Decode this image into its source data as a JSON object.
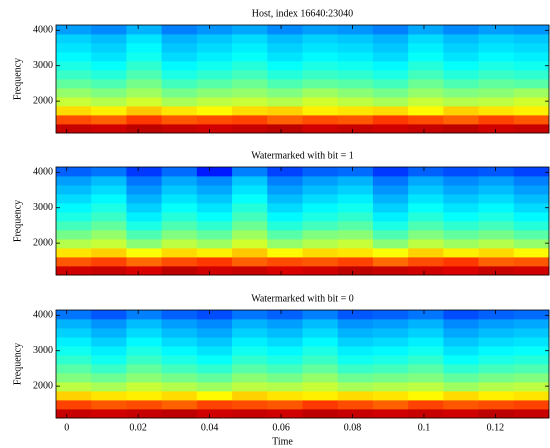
{
  "chart_data": [
    {
      "type": "heatmap",
      "title": "Host, index 16640:23040",
      "ylabel": "Frequency",
      "colormap": "jet",
      "xlim": [
        -0.003,
        0.135
      ],
      "ylim": [
        1100,
        4150
      ],
      "xticks": [
        0,
        0.02,
        0.04,
        0.06,
        0.08,
        0.1,
        0.12
      ],
      "yticks": [
        2000,
        3000,
        4000
      ],
      "z": [
        [
          0.93,
          0.92,
          0.94,
          0.93,
          0.92,
          0.93,
          0.94,
          0.92,
          0.93,
          0.92,
          0.93,
          0.94,
          0.92,
          0.93
        ],
        [
          0.8,
          0.78,
          0.82,
          0.79,
          0.8,
          0.81,
          0.78,
          0.8,
          0.79,
          0.82,
          0.8,
          0.78,
          0.81,
          0.79
        ],
        [
          0.66,
          0.64,
          0.68,
          0.65,
          0.63,
          0.66,
          0.67,
          0.64,
          0.65,
          0.66,
          0.63,
          0.67,
          0.65,
          0.64
        ],
        [
          0.57,
          0.55,
          0.58,
          0.54,
          0.56,
          0.57,
          0.55,
          0.58,
          0.56,
          0.54,
          0.57,
          0.55,
          0.56,
          0.58
        ],
        [
          0.52,
          0.5,
          0.53,
          0.49,
          0.51,
          0.52,
          0.5,
          0.53,
          0.51,
          0.49,
          0.52,
          0.5,
          0.51,
          0.53
        ],
        [
          0.47,
          0.45,
          0.49,
          0.44,
          0.46,
          0.48,
          0.45,
          0.47,
          0.46,
          0.44,
          0.48,
          0.45,
          0.47,
          0.46
        ],
        [
          0.43,
          0.41,
          0.45,
          0.4,
          0.42,
          0.44,
          0.41,
          0.43,
          0.42,
          0.4,
          0.44,
          0.41,
          0.43,
          0.42
        ],
        [
          0.4,
          0.38,
          0.42,
          0.37,
          0.39,
          0.41,
          0.38,
          0.4,
          0.39,
          0.37,
          0.41,
          0.38,
          0.4,
          0.39
        ],
        [
          0.37,
          0.35,
          0.39,
          0.34,
          0.36,
          0.38,
          0.35,
          0.37,
          0.36,
          0.34,
          0.38,
          0.35,
          0.37,
          0.36
        ],
        [
          0.35,
          0.33,
          0.37,
          0.32,
          0.34,
          0.36,
          0.33,
          0.35,
          0.34,
          0.32,
          0.36,
          0.33,
          0.35,
          0.34
        ],
        [
          0.33,
          0.31,
          0.35,
          0.3,
          0.32,
          0.34,
          0.31,
          0.33,
          0.32,
          0.3,
          0.34,
          0.31,
          0.33,
          0.32
        ],
        [
          0.28,
          0.26,
          0.3,
          0.25,
          0.27,
          0.29,
          0.26,
          0.28,
          0.27,
          0.25,
          0.29,
          0.26,
          0.28,
          0.27
        ]
      ]
    },
    {
      "type": "heatmap",
      "title": "Watermarked with bit = 1",
      "ylabel": "Frequency",
      "colormap": "jet",
      "xlim": [
        -0.003,
        0.135
      ],
      "ylim": [
        1100,
        4150
      ],
      "xticks": [
        0,
        0.02,
        0.04,
        0.06,
        0.08,
        0.1,
        0.12
      ],
      "yticks": [
        2000,
        3000,
        4000
      ],
      "z": [
        [
          0.92,
          0.93,
          0.91,
          0.94,
          0.92,
          0.93,
          0.91,
          0.92,
          0.94,
          0.93,
          0.92,
          0.91,
          0.93,
          0.92
        ],
        [
          0.79,
          0.81,
          0.77,
          0.8,
          0.82,
          0.78,
          0.8,
          0.79,
          0.81,
          0.77,
          0.8,
          0.82,
          0.78,
          0.79
        ],
        [
          0.65,
          0.67,
          0.62,
          0.66,
          0.64,
          0.68,
          0.63,
          0.66,
          0.65,
          0.62,
          0.67,
          0.64,
          0.66,
          0.63
        ],
        [
          0.55,
          0.57,
          0.51,
          0.56,
          0.53,
          0.58,
          0.52,
          0.55,
          0.57,
          0.51,
          0.56,
          0.53,
          0.55,
          0.52
        ],
        [
          0.49,
          0.52,
          0.45,
          0.5,
          0.47,
          0.53,
          0.46,
          0.5,
          0.51,
          0.45,
          0.5,
          0.47,
          0.49,
          0.46
        ],
        [
          0.44,
          0.47,
          0.4,
          0.45,
          0.42,
          0.48,
          0.41,
          0.44,
          0.46,
          0.4,
          0.45,
          0.42,
          0.44,
          0.41
        ],
        [
          0.4,
          0.43,
          0.36,
          0.41,
          0.38,
          0.44,
          0.37,
          0.4,
          0.42,
          0.36,
          0.41,
          0.38,
          0.4,
          0.37
        ],
        [
          0.37,
          0.4,
          0.33,
          0.38,
          0.35,
          0.41,
          0.34,
          0.37,
          0.39,
          0.33,
          0.38,
          0.35,
          0.37,
          0.34
        ],
        [
          0.34,
          0.37,
          0.3,
          0.35,
          0.32,
          0.38,
          0.31,
          0.34,
          0.36,
          0.3,
          0.35,
          0.32,
          0.34,
          0.31
        ],
        [
          0.31,
          0.34,
          0.27,
          0.32,
          0.29,
          0.35,
          0.28,
          0.31,
          0.33,
          0.27,
          0.32,
          0.29,
          0.31,
          0.28
        ],
        [
          0.28,
          0.31,
          0.24,
          0.29,
          0.26,
          0.32,
          0.25,
          0.28,
          0.3,
          0.24,
          0.29,
          0.26,
          0.28,
          0.25
        ],
        [
          0.22,
          0.24,
          0.18,
          0.23,
          0.15,
          0.25,
          0.19,
          0.22,
          0.23,
          0.18,
          0.22,
          0.2,
          0.21,
          0.19
        ]
      ]
    },
    {
      "type": "heatmap",
      "title": "Watermarked with bit = 0",
      "ylabel": "Frequency",
      "xlabel": "Time",
      "colormap": "jet",
      "xlim": [
        -0.003,
        0.135
      ],
      "ylim": [
        1100,
        4150
      ],
      "xticks": [
        0,
        0.02,
        0.04,
        0.06,
        0.08,
        0.1,
        0.12
      ],
      "yticks": [
        2000,
        3000,
        4000
      ],
      "z": [
        [
          0.93,
          0.92,
          0.93,
          0.94,
          0.92,
          0.93,
          0.92,
          0.94,
          0.93,
          0.92,
          0.93,
          0.92,
          0.94,
          0.93
        ],
        [
          0.81,
          0.79,
          0.8,
          0.78,
          0.81,
          0.8,
          0.79,
          0.82,
          0.8,
          0.78,
          0.81,
          0.79,
          0.8,
          0.81
        ],
        [
          0.67,
          0.65,
          0.64,
          0.66,
          0.63,
          0.67,
          0.65,
          0.64,
          0.66,
          0.65,
          0.63,
          0.66,
          0.64,
          0.65
        ],
        [
          0.56,
          0.54,
          0.57,
          0.55,
          0.53,
          0.56,
          0.55,
          0.57,
          0.54,
          0.55,
          0.56,
          0.53,
          0.55,
          0.56
        ],
        [
          0.5,
          0.48,
          0.51,
          0.49,
          0.47,
          0.51,
          0.49,
          0.52,
          0.48,
          0.49,
          0.5,
          0.47,
          0.49,
          0.5
        ],
        [
          0.46,
          0.43,
          0.47,
          0.44,
          0.42,
          0.46,
          0.44,
          0.47,
          0.43,
          0.44,
          0.46,
          0.42,
          0.44,
          0.45
        ],
        [
          0.42,
          0.39,
          0.43,
          0.4,
          0.38,
          0.42,
          0.4,
          0.43,
          0.39,
          0.4,
          0.42,
          0.38,
          0.4,
          0.41
        ],
        [
          0.39,
          0.36,
          0.4,
          0.37,
          0.35,
          0.39,
          0.37,
          0.4,
          0.36,
          0.37,
          0.39,
          0.35,
          0.37,
          0.38
        ],
        [
          0.36,
          0.33,
          0.37,
          0.34,
          0.32,
          0.36,
          0.34,
          0.37,
          0.33,
          0.34,
          0.36,
          0.32,
          0.34,
          0.35
        ],
        [
          0.33,
          0.3,
          0.34,
          0.31,
          0.29,
          0.33,
          0.31,
          0.34,
          0.3,
          0.31,
          0.33,
          0.29,
          0.31,
          0.32
        ],
        [
          0.3,
          0.27,
          0.31,
          0.28,
          0.26,
          0.3,
          0.28,
          0.31,
          0.27,
          0.28,
          0.3,
          0.26,
          0.28,
          0.29
        ],
        [
          0.24,
          0.21,
          0.25,
          0.22,
          0.2,
          0.24,
          0.22,
          0.25,
          0.21,
          0.22,
          0.24,
          0.2,
          0.22,
          0.23
        ]
      ]
    }
  ]
}
